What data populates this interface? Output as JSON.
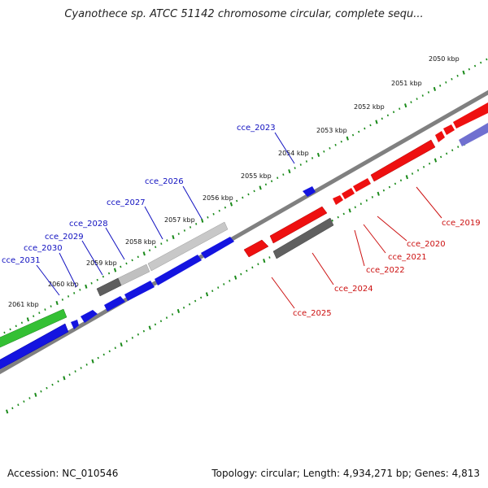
{
  "title": "Cyanothece sp. ATCC 51142 chromosome circular, complete sequ...",
  "footer": {
    "accession": "Accession: NC_010546",
    "topology": "Topology: circular; Length: 4,934,271 bp; Genes: 4,813"
  },
  "colors": {
    "forward_gene": "#1010e0",
    "reverse_gene": "#ee1010",
    "pseudogene_gray": "#666666",
    "light_gray": "#c8c8c8",
    "green_gene": "#30c030",
    "purple_gene": "#7070d0",
    "tick_green": "#1a8a1a",
    "label_blue": "#1010c0",
    "label_red": "#cc1010"
  },
  "scale_labels": [
    "2050 kbp",
    "2051 kbp",
    "2052 kbp",
    "2053 kbp",
    "2054 kbp",
    "2055 kbp",
    "2056 kbp",
    "2057 kbp",
    "2058 kbp",
    "2059 kbp",
    "2060 kbp",
    "2061 kbp"
  ],
  "genes": [
    {
      "name": "cce_2019",
      "strand": "-"
    },
    {
      "name": "cce_2020",
      "strand": "-"
    },
    {
      "name": "cce_2021",
      "strand": "-"
    },
    {
      "name": "cce_2022",
      "strand": "-"
    },
    {
      "name": "cce_2023",
      "strand": "+"
    },
    {
      "name": "cce_2024",
      "strand": "-"
    },
    {
      "name": "cce_2025",
      "strand": "-"
    },
    {
      "name": "cce_2026",
      "strand": "+"
    },
    {
      "name": "cce_2027",
      "strand": "+"
    },
    {
      "name": "cce_2028",
      "strand": "+"
    },
    {
      "name": "cce_2029",
      "strand": "+"
    },
    {
      "name": "cce_2030",
      "strand": "+"
    },
    {
      "name": "cce_2031",
      "strand": "+"
    }
  ]
}
